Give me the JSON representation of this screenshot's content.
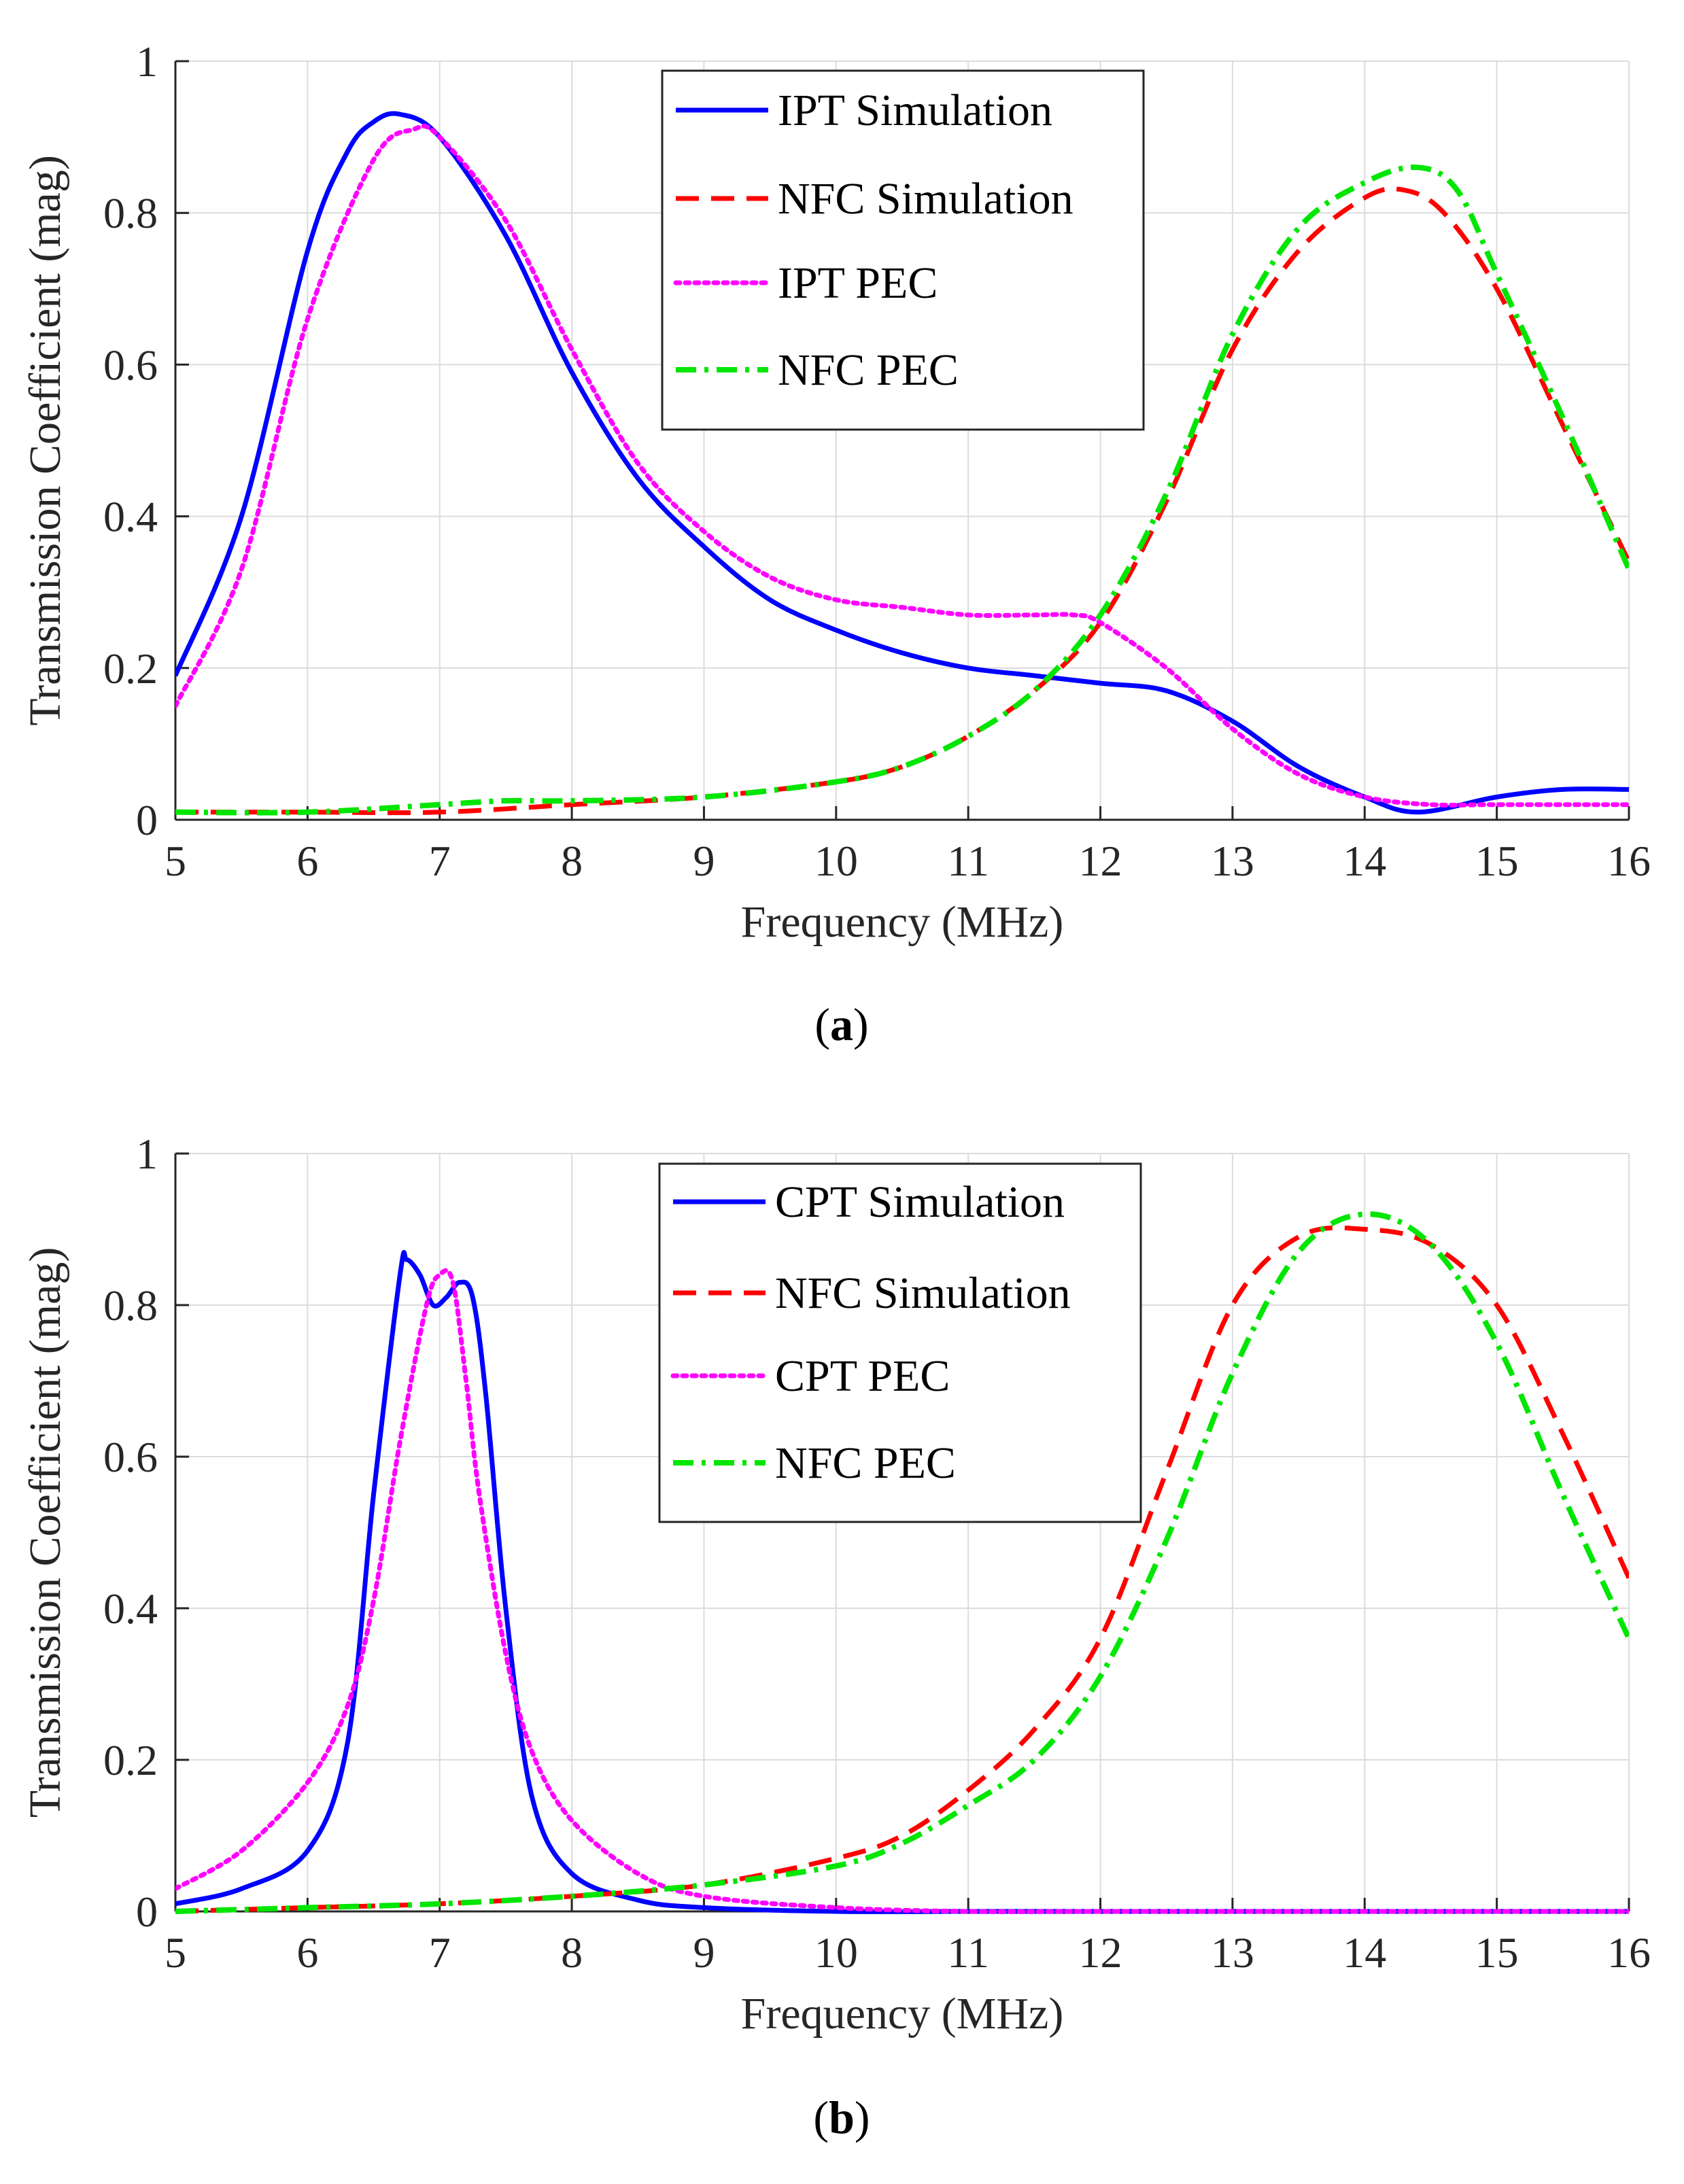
{
  "figure": {
    "captions": [
      "(a)",
      "(b)"
    ],
    "caption_letters": [
      "a",
      "b"
    ]
  },
  "chart_data": [
    {
      "type": "line",
      "panel": "a",
      "xlabel": "Frequency (MHz)",
      "ylabel": "Transmission Coefficient (mag)",
      "xlim": [
        5,
        16
      ],
      "ylim": [
        0,
        1
      ],
      "xticks": [
        5,
        6,
        7,
        8,
        9,
        10,
        11,
        12,
        13,
        14,
        15,
        16
      ],
      "yticks": [
        0,
        0.2,
        0.4,
        0.6,
        0.8,
        1
      ],
      "ytick_labels": [
        "0",
        "0.2",
        "0.4",
        "0.6",
        "0.8",
        "1"
      ],
      "grid": true,
      "legend_position": "top-right",
      "series": [
        {
          "name": "IPT Simulation",
          "color": "#0000ff",
          "style": "solid",
          "x": [
            5,
            5.5,
            6,
            6.3,
            6.5,
            6.7,
            7,
            7.5,
            8,
            8.5,
            9,
            9.5,
            10,
            10.5,
            11,
            11.5,
            12,
            12.5,
            13,
            13.5,
            14,
            14.4,
            15,
            15.5,
            16
          ],
          "y": [
            0.19,
            0.4,
            0.75,
            0.88,
            0.92,
            0.93,
            0.9,
            0.77,
            0.59,
            0.45,
            0.36,
            0.29,
            0.25,
            0.22,
            0.2,
            0.19,
            0.18,
            0.17,
            0.13,
            0.07,
            0.03,
            0.01,
            0.03,
            0.04,
            0.04
          ]
        },
        {
          "name": "NFC Simulation",
          "color": "#ff0000",
          "style": "dashed",
          "x": [
            5,
            6,
            7,
            8,
            9,
            10,
            10.5,
            11,
            11.5,
            12,
            12.5,
            13,
            13.5,
            14,
            14.3,
            14.6,
            15,
            15.5,
            16
          ],
          "y": [
            0.01,
            0.01,
            0.01,
            0.02,
            0.03,
            0.05,
            0.07,
            0.11,
            0.17,
            0.26,
            0.42,
            0.62,
            0.75,
            0.82,
            0.83,
            0.8,
            0.7,
            0.52,
            0.34
          ]
        },
        {
          "name": "IPT PEC",
          "color": "#ff00ff",
          "style": "dotted",
          "x": [
            5,
            5.5,
            6,
            6.5,
            6.8,
            7,
            7.5,
            8,
            8.5,
            9,
            9.5,
            10,
            10.5,
            11,
            11.5,
            11.8,
            12,
            12.5,
            13,
            13.5,
            14,
            14.5,
            15,
            16
          ],
          "y": [
            0.15,
            0.33,
            0.66,
            0.87,
            0.91,
            0.9,
            0.79,
            0.62,
            0.47,
            0.38,
            0.32,
            0.29,
            0.28,
            0.27,
            0.27,
            0.27,
            0.26,
            0.2,
            0.12,
            0.06,
            0.03,
            0.02,
            0.02,
            0.02
          ]
        },
        {
          "name": "NFC PEC",
          "color": "#00e600",
          "style": "dashdot",
          "x": [
            5,
            6,
            7,
            7.5,
            8,
            9,
            10,
            10.5,
            11,
            11.5,
            12,
            12.5,
            13,
            13.5,
            14,
            14.4,
            14.7,
            15,
            15.5,
            16
          ],
          "y": [
            0.01,
            0.01,
            0.02,
            0.025,
            0.025,
            0.03,
            0.05,
            0.07,
            0.11,
            0.17,
            0.27,
            0.43,
            0.64,
            0.78,
            0.84,
            0.86,
            0.83,
            0.72,
            0.53,
            0.33
          ]
        }
      ]
    },
    {
      "type": "line",
      "panel": "b",
      "xlabel": "Frequency (MHz)",
      "ylabel": "Transmission Coefficient (mag)",
      "xlim": [
        5,
        16
      ],
      "ylim": [
        0,
        1
      ],
      "xticks": [
        5,
        6,
        7,
        8,
        9,
        10,
        11,
        12,
        13,
        14,
        15,
        16
      ],
      "yticks": [
        0,
        0.2,
        0.4,
        0.6,
        0.8,
        1
      ],
      "ytick_labels": [
        "0",
        "0.2",
        "0.4",
        "0.6",
        "0.8",
        "1"
      ],
      "grid": true,
      "legend_position": "top-center",
      "series": [
        {
          "name": "CPT Simulation",
          "color": "#0000ff",
          "style": "solid",
          "x": [
            5,
            5.5,
            6,
            6.3,
            6.5,
            6.7,
            6.75,
            6.85,
            6.95,
            7.05,
            7.15,
            7.25,
            7.35,
            7.5,
            7.7,
            8,
            8.5,
            9,
            10,
            11,
            12,
            13,
            14,
            15,
            16
          ],
          "y": [
            0.01,
            0.03,
            0.08,
            0.22,
            0.55,
            0.84,
            0.86,
            0.84,
            0.8,
            0.81,
            0.83,
            0.81,
            0.68,
            0.4,
            0.15,
            0.05,
            0.015,
            0.005,
            0,
            0,
            0,
            0,
            0,
            0,
            0
          ]
        },
        {
          "name": "NFC Simulation",
          "color": "#ff0000",
          "style": "dashed",
          "x": [
            5,
            6,
            7,
            8,
            9,
            10,
            10.5,
            11,
            11.5,
            12,
            12.5,
            13,
            13.5,
            14,
            14.5,
            15,
            15.5,
            16
          ],
          "y": [
            0,
            0.005,
            0.01,
            0.02,
            0.035,
            0.07,
            0.1,
            0.16,
            0.24,
            0.36,
            0.58,
            0.8,
            0.89,
            0.9,
            0.88,
            0.8,
            0.63,
            0.44
          ]
        },
        {
          "name": "CPT PEC",
          "color": "#ff00ff",
          "style": "dotted",
          "x": [
            5,
            5.5,
            6,
            6.3,
            6.5,
            6.7,
            6.9,
            7,
            7.1,
            7.2,
            7.3,
            7.5,
            7.7,
            8,
            8.5,
            9,
            10,
            11,
            12,
            13,
            14,
            15,
            16
          ],
          "y": [
            0.03,
            0.08,
            0.17,
            0.27,
            0.41,
            0.62,
            0.8,
            0.84,
            0.83,
            0.7,
            0.55,
            0.34,
            0.21,
            0.12,
            0.05,
            0.02,
            0.005,
            0,
            0,
            0,
            0,
            0,
            0
          ]
        },
        {
          "name": "NFC PEC",
          "color": "#00e600",
          "style": "dashdot",
          "x": [
            5,
            6,
            7,
            8,
            9,
            10,
            10.5,
            11,
            11.5,
            12,
            12.5,
            13,
            13.5,
            14,
            14.5,
            15,
            15.5,
            16
          ],
          "y": [
            0,
            0.005,
            0.01,
            0.02,
            0.035,
            0.06,
            0.09,
            0.14,
            0.2,
            0.31,
            0.49,
            0.71,
            0.87,
            0.92,
            0.88,
            0.75,
            0.55,
            0.36
          ]
        }
      ]
    }
  ]
}
